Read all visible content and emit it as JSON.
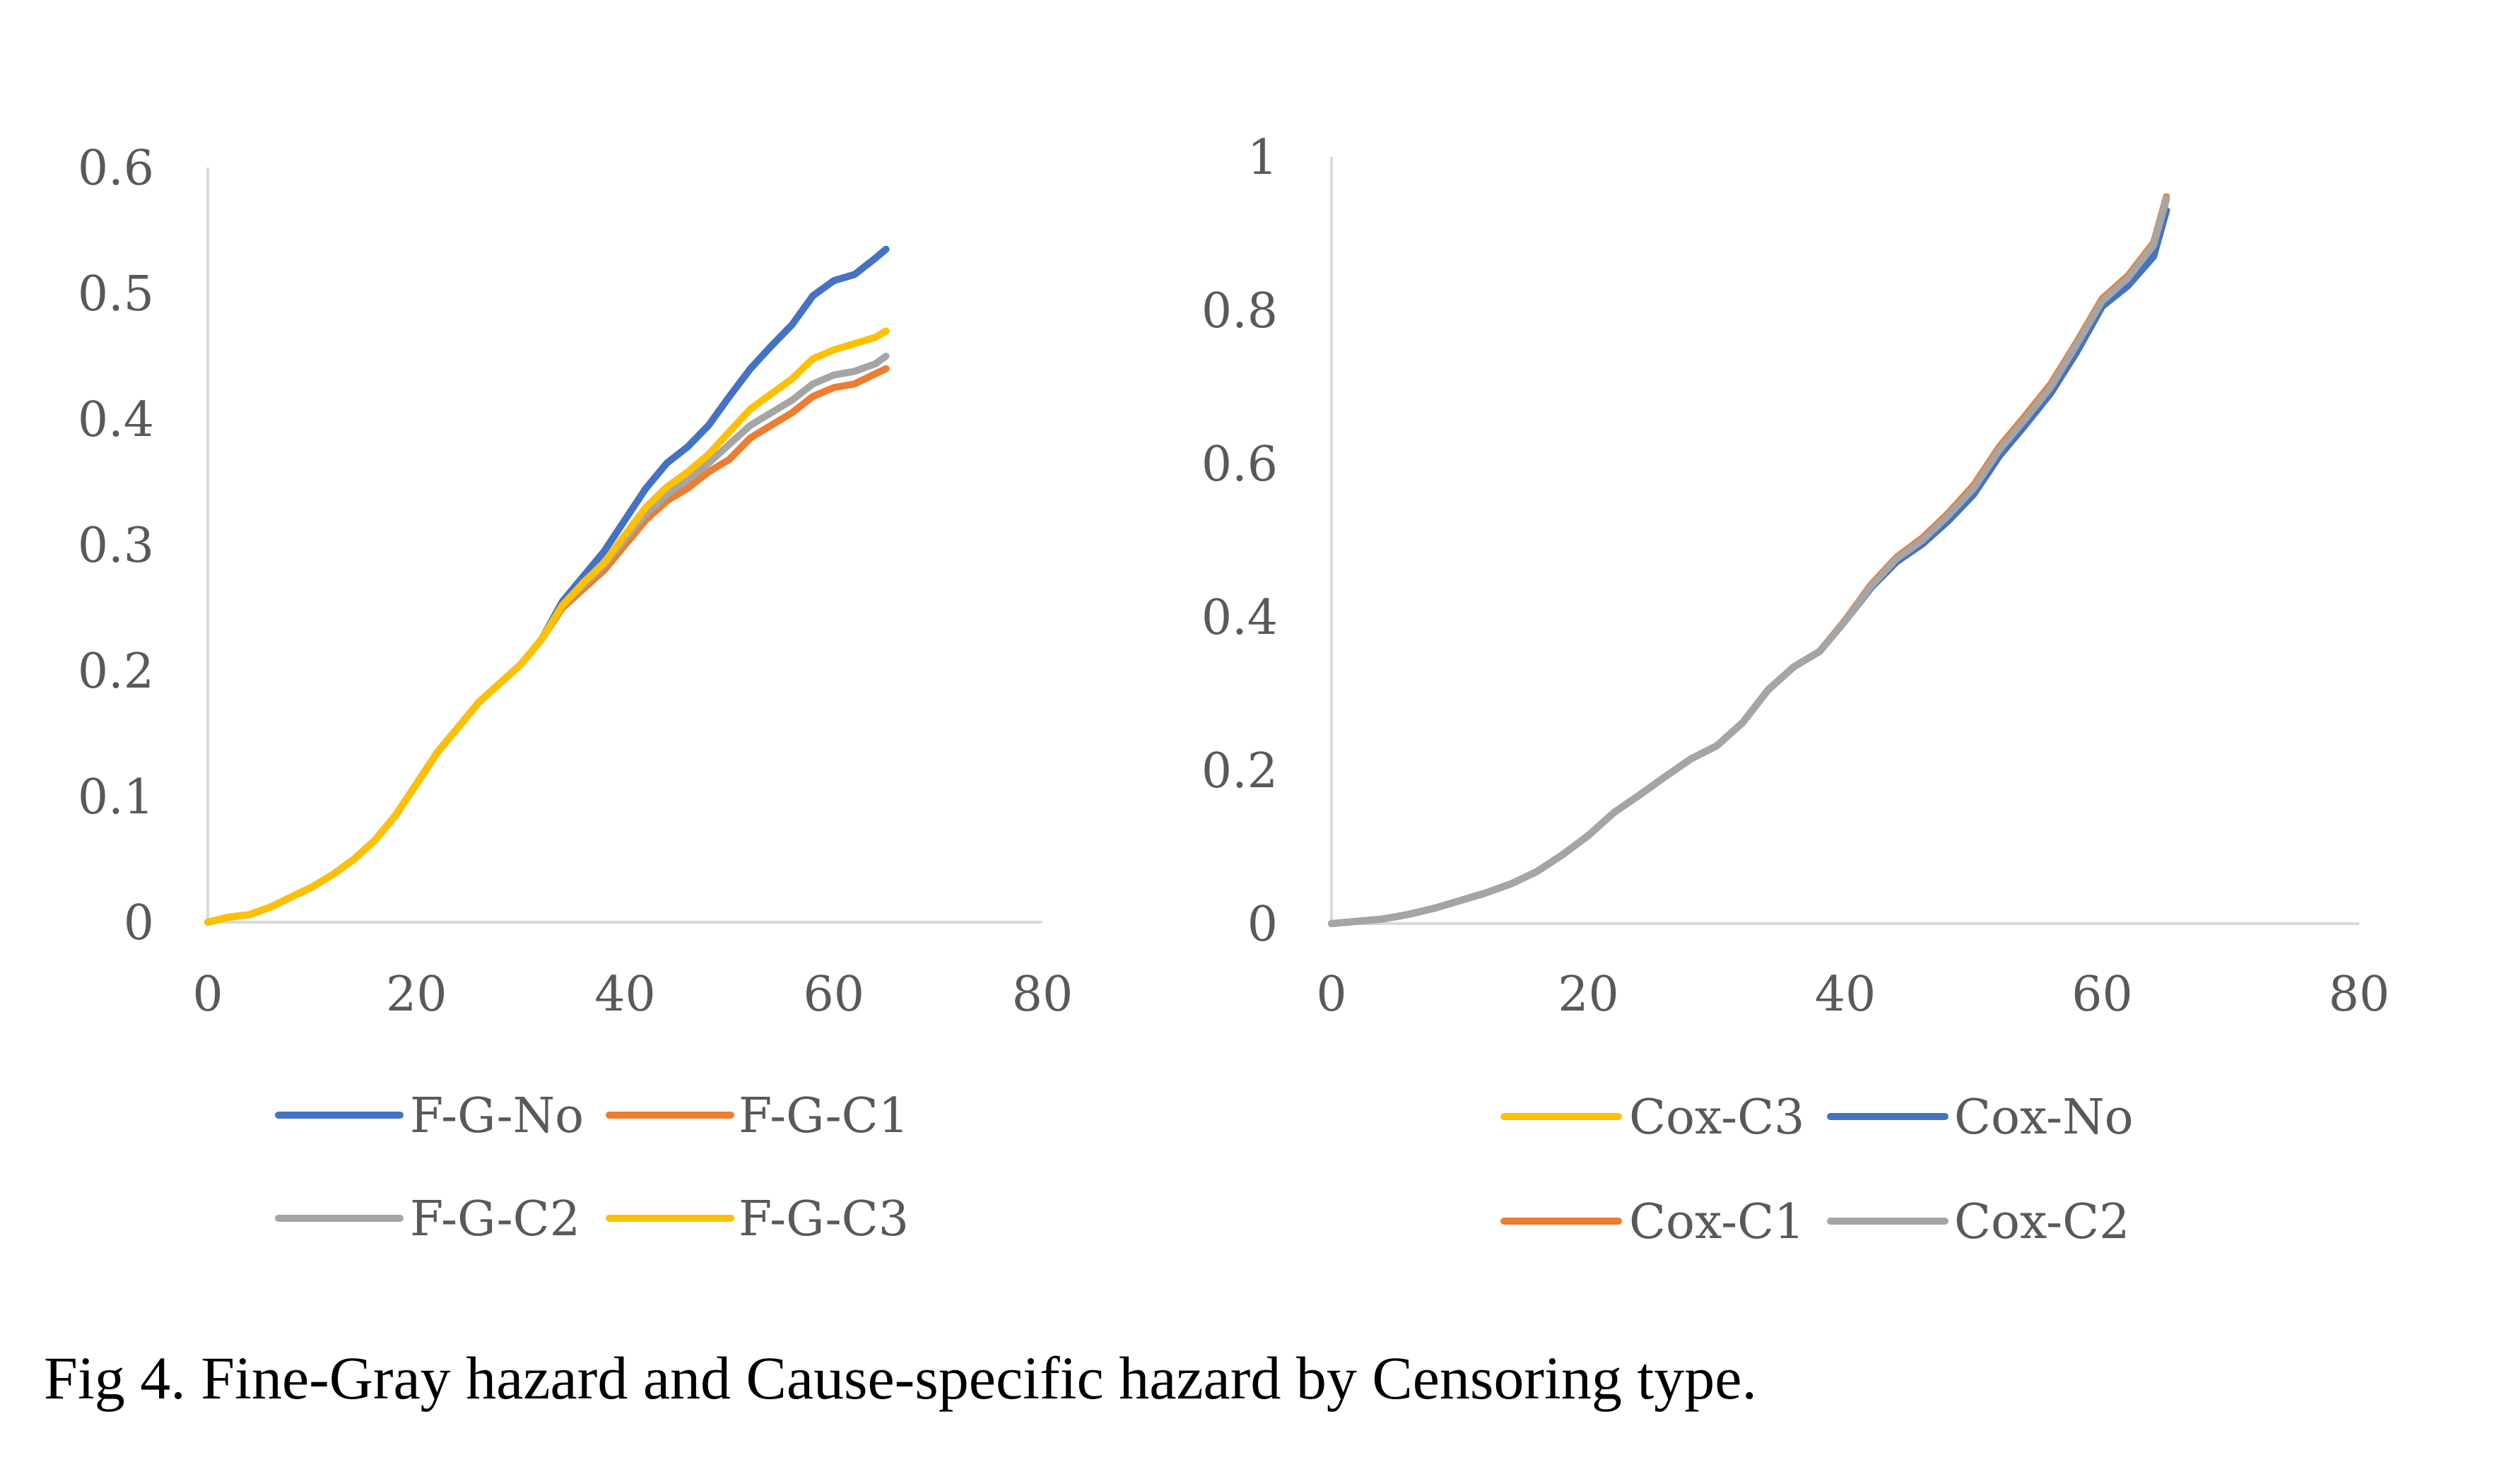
{
  "caption": "Fig 4. Fine-Gray hazard and Cause-specific hazard by Censoring type.",
  "chart_data": [
    {
      "type": "line",
      "title": "",
      "xlabel": "",
      "ylabel": "",
      "xlim": [
        0,
        80
      ],
      "ylim": [
        0,
        0.6
      ],
      "x_ticks": [
        "0",
        "20",
        "40",
        "60",
        "80"
      ],
      "y_ticks": [
        "0",
        "0.1",
        "0.2",
        "0.3",
        "0.4",
        "0.5",
        "0.6"
      ],
      "grid": false,
      "legend_position": "bottom",
      "x": [
        0,
        2,
        4,
        6,
        8,
        10,
        12,
        14,
        16,
        18,
        20,
        22,
        24,
        26,
        28,
        30,
        32,
        34,
        36,
        38,
        40,
        42,
        44,
        46,
        48,
        50,
        52,
        54,
        56,
        58,
        60,
        62,
        64,
        65
      ],
      "series": [
        {
          "name": "F-G-No",
          "color": "#4472C4",
          "values": [
            0.0,
            0.004,
            0.006,
            0.012,
            0.02,
            0.028,
            0.038,
            0.05,
            0.065,
            0.085,
            0.11,
            0.135,
            0.155,
            0.175,
            0.19,
            0.205,
            0.225,
            0.255,
            0.275,
            0.295,
            0.32,
            0.345,
            0.365,
            0.378,
            0.395,
            0.418,
            0.44,
            0.458,
            0.475,
            0.498,
            0.51,
            0.515,
            0.528,
            0.535
          ]
        },
        {
          "name": "F-G-C1",
          "color": "#ED7D31",
          "values": [
            0.0,
            0.004,
            0.006,
            0.012,
            0.02,
            0.028,
            0.038,
            0.05,
            0.065,
            0.085,
            0.11,
            0.135,
            0.155,
            0.175,
            0.19,
            0.205,
            0.225,
            0.25,
            0.265,
            0.28,
            0.3,
            0.32,
            0.335,
            0.345,
            0.358,
            0.368,
            0.385,
            0.395,
            0.405,
            0.418,
            0.425,
            0.428,
            0.436,
            0.44
          ]
        },
        {
          "name": "F-G-C2",
          "color": "#A5A5A5",
          "values": [
            0.0,
            0.004,
            0.006,
            0.012,
            0.02,
            0.028,
            0.038,
            0.05,
            0.065,
            0.085,
            0.11,
            0.135,
            0.155,
            0.175,
            0.19,
            0.205,
            0.225,
            0.252,
            0.268,
            0.284,
            0.305,
            0.325,
            0.34,
            0.352,
            0.365,
            0.38,
            0.395,
            0.405,
            0.415,
            0.428,
            0.435,
            0.438,
            0.444,
            0.45
          ]
        },
        {
          "name": "F-G-C3",
          "color": "#FFC000",
          "values": [
            0.0,
            0.004,
            0.006,
            0.012,
            0.02,
            0.028,
            0.038,
            0.05,
            0.065,
            0.085,
            0.11,
            0.135,
            0.155,
            0.175,
            0.19,
            0.205,
            0.225,
            0.252,
            0.27,
            0.286,
            0.308,
            0.33,
            0.346,
            0.358,
            0.372,
            0.39,
            0.408,
            0.42,
            0.432,
            0.448,
            0.455,
            0.46,
            0.465,
            0.47
          ]
        }
      ]
    },
    {
      "type": "line",
      "title": "",
      "xlabel": "",
      "ylabel": "",
      "xlim": [
        0,
        80
      ],
      "ylim": [
        0,
        1
      ],
      "x_ticks": [
        "0",
        "20",
        "40",
        "60",
        "80"
      ],
      "y_ticks": [
        "0",
        "0.2",
        "0.4",
        "0.6",
        "0.8",
        "1"
      ],
      "grid": false,
      "legend_position": "bottom",
      "x": [
        0,
        2,
        4,
        6,
        8,
        10,
        12,
        14,
        16,
        18,
        20,
        22,
        24,
        26,
        28,
        30,
        32,
        34,
        36,
        38,
        40,
        42,
        44,
        46,
        48,
        50,
        52,
        54,
        56,
        58,
        60,
        62,
        64,
        65
      ],
      "series": [
        {
          "name": "Cox-C3",
          "color": "#FFC000",
          "values": [
            0.0,
            0.003,
            0.006,
            0.012,
            0.02,
            0.03,
            0.04,
            0.052,
            0.068,
            0.09,
            0.115,
            0.145,
            0.168,
            0.192,
            0.215,
            0.232,
            0.262,
            0.305,
            0.335,
            0.355,
            0.395,
            0.44,
            0.475,
            0.5,
            0.532,
            0.568,
            0.618,
            0.658,
            0.7,
            0.755,
            0.812,
            0.842,
            0.885,
            0.945
          ]
        },
        {
          "name": "Cox-No",
          "color": "#4472C4",
          "values": [
            0.0,
            0.003,
            0.006,
            0.012,
            0.02,
            0.03,
            0.04,
            0.052,
            0.068,
            0.09,
            0.115,
            0.145,
            0.168,
            0.192,
            0.215,
            0.232,
            0.262,
            0.305,
            0.335,
            0.355,
            0.395,
            0.438,
            0.472,
            0.495,
            0.525,
            0.56,
            0.61,
            0.65,
            0.692,
            0.745,
            0.805,
            0.832,
            0.87,
            0.93
          ]
        },
        {
          "name": "Cox-C1",
          "color": "#ED7D31",
          "values": [
            0.0,
            0.003,
            0.006,
            0.012,
            0.02,
            0.03,
            0.04,
            0.052,
            0.068,
            0.09,
            0.115,
            0.145,
            0.168,
            0.192,
            0.215,
            0.232,
            0.262,
            0.305,
            0.335,
            0.355,
            0.396,
            0.442,
            0.478,
            0.503,
            0.535,
            0.572,
            0.622,
            0.662,
            0.704,
            0.758,
            0.815,
            0.845,
            0.888,
            0.948
          ]
        },
        {
          "name": "Cox-C2",
          "color": "#A5A5A5",
          "values": [
            0.0,
            0.003,
            0.006,
            0.012,
            0.02,
            0.03,
            0.04,
            0.052,
            0.068,
            0.09,
            0.115,
            0.145,
            0.168,
            0.192,
            0.215,
            0.232,
            0.262,
            0.305,
            0.335,
            0.355,
            0.395,
            0.44,
            0.476,
            0.5,
            0.532,
            0.568,
            0.618,
            0.658,
            0.7,
            0.755,
            0.812,
            0.842,
            0.885,
            0.945
          ]
        }
      ]
    }
  ]
}
